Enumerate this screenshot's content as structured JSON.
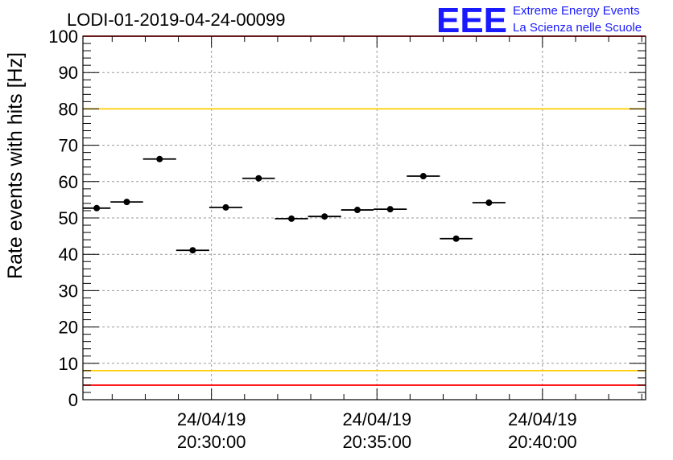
{
  "title": "LODI-01-2019-04-24-00099",
  "logo": {
    "mark": "EEE",
    "line1": "Extreme Energy Events",
    "line2": "La Scienza nelle Scuole",
    "color": "#1a1aff"
  },
  "chart_data": {
    "type": "scatter",
    "title": "LODI-01-2019-04-24-00099",
    "ylabel": "Rate events with hits [Hz]",
    "xlabel": "",
    "ylim": [
      0,
      100
    ],
    "yticks": [
      "0",
      "10",
      "20",
      "30",
      "40",
      "50",
      "60",
      "70",
      "80",
      "90",
      "100"
    ],
    "xlim": [
      "24/04/19 20:26:07",
      "24/04/19 20:43:07"
    ],
    "xticks": [
      {
        "date": "24/04/19",
        "time": "20:30:00"
      },
      {
        "date": "24/04/19",
        "time": "20:35:00"
      },
      {
        "date": "24/04/19",
        "time": "20:40:00"
      }
    ],
    "grid": true,
    "marker_color": "#000000",
    "series": [
      {
        "points": [
          {
            "x_start": "20:26:07",
            "x_end": "20:26:57",
            "y": 52.7
          },
          {
            "x_start": "20:26:57",
            "x_end": "20:27:56",
            "y": 54.4
          },
          {
            "x_start": "20:27:56",
            "x_end": "20:28:56",
            "y": 66.2
          },
          {
            "x_start": "20:28:56",
            "x_end": "20:29:56",
            "y": 41.1
          },
          {
            "x_start": "20:29:56",
            "x_end": "20:30:56",
            "y": 52.9
          },
          {
            "x_start": "20:30:56",
            "x_end": "20:31:55",
            "y": 60.9
          },
          {
            "x_start": "20:31:55",
            "x_end": "20:32:55",
            "y": 49.8
          },
          {
            "x_start": "20:32:55",
            "x_end": "20:33:55",
            "y": 50.4
          },
          {
            "x_start": "20:33:55",
            "x_end": "20:34:54",
            "y": 52.2
          },
          {
            "x_start": "20:34:54",
            "x_end": "20:35:54",
            "y": 52.4
          },
          {
            "x_start": "20:35:54",
            "x_end": "20:36:54",
            "y": 61.5
          },
          {
            "x_start": "20:36:54",
            "x_end": "20:37:53",
            "y": 44.3
          },
          {
            "x_start": "20:37:53",
            "x_end": "20:38:53",
            "y": 54.2
          }
        ]
      }
    ],
    "reference_lines": [
      {
        "y": 100,
        "color": "#ff0000"
      },
      {
        "y": 80,
        "color": "#ffcc00"
      },
      {
        "y": 8,
        "color": "#ffcc00"
      },
      {
        "y": 4,
        "color": "#ff0000"
      }
    ]
  }
}
